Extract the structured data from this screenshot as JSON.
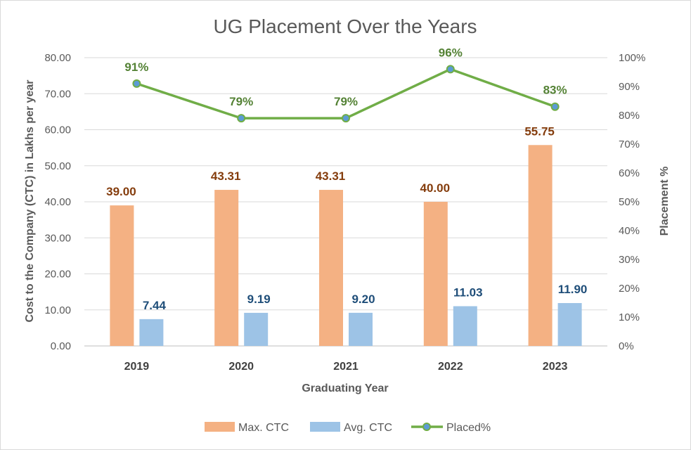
{
  "chart_data": {
    "type": "bar",
    "title": "UG Placement Over the Years",
    "xlabel": "Graduating  Year",
    "ylabel": "Cost to the Company (CTC) in Lakhs per year",
    "y2label": "Placement %",
    "categories": [
      "2019",
      "2020",
      "2021",
      "2022",
      "2023"
    ],
    "ylim": [
      0,
      80
    ],
    "y2lim": [
      0,
      100
    ],
    "y_ticks": [
      "0.00",
      "10.00",
      "20.00",
      "30.00",
      "40.00",
      "50.00",
      "60.00",
      "70.00",
      "80.00"
    ],
    "y2_ticks": [
      "0%",
      "10%",
      "20%",
      "30%",
      "40%",
      "50%",
      "60%",
      "70%",
      "80%",
      "90%",
      "100%"
    ],
    "grid": true,
    "legend_position": "bottom",
    "series": [
      {
        "name": "Max. CTC",
        "type": "bar",
        "axis": "left",
        "color": "#f4b183",
        "label_color": "#843c0c",
        "values": [
          39.0,
          43.31,
          43.31,
          40.0,
          55.75
        ],
        "labels": [
          "39.00",
          "43.31",
          "43.31",
          "40.00",
          "55.75"
        ]
      },
      {
        "name": "Avg. CTC",
        "type": "bar",
        "axis": "left",
        "color": "#9dc3e6",
        "label_color": "#1f4e79",
        "values": [
          7.44,
          9.19,
          9.2,
          11.03,
          11.9
        ],
        "labels": [
          "7.44",
          "9.19",
          "9.20",
          "11.03",
          "11.90"
        ]
      },
      {
        "name": "Placed%",
        "type": "line",
        "axis": "right",
        "color": "#70ad47",
        "marker_color": "#5b9bd5",
        "label_color": "#548235",
        "values": [
          91,
          79,
          79,
          96,
          83
        ],
        "labels": [
          "91%",
          "79%",
          "79%",
          "96%",
          "83%"
        ]
      }
    ]
  }
}
